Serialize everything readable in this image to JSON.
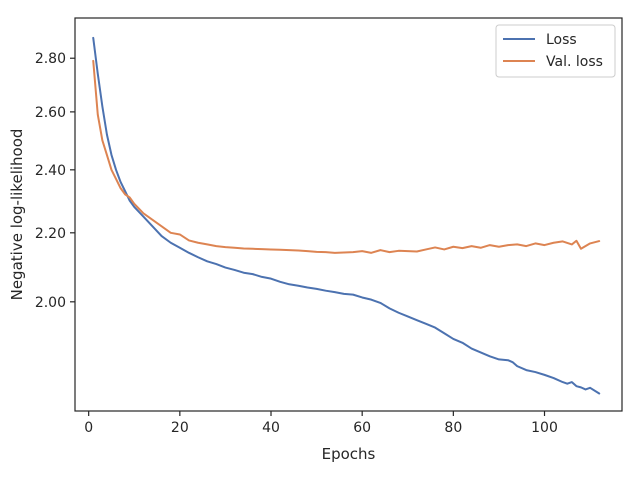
{
  "chart_data": {
    "type": "line",
    "xlabel": "Epochs",
    "ylabel": "Negative log-likelihood",
    "yscale": "log",
    "xlim": [
      -3,
      117
    ],
    "ylim": [
      1.72,
      2.96
    ],
    "xticks": [
      0,
      20,
      40,
      60,
      80,
      100
    ],
    "xtick_labels": [
      "0",
      "20",
      "40",
      "60",
      "80",
      "100"
    ],
    "yticks": [
      2.0,
      2.2,
      2.4,
      2.6,
      2.8
    ],
    "ytick_labels": [
      "2.00",
      "2.20",
      "2.40",
      "2.60",
      "2.80"
    ],
    "grid": false,
    "legend_position": "top-right",
    "series": [
      {
        "name": "Loss",
        "color": "#4c72b0",
        "x": [
          1,
          2,
          3,
          4,
          5,
          6,
          7,
          8,
          9,
          10,
          12,
          14,
          16,
          18,
          20,
          22,
          24,
          26,
          28,
          30,
          32,
          34,
          36,
          38,
          40,
          42,
          44,
          46,
          48,
          50,
          52,
          54,
          56,
          58,
          60,
          62,
          64,
          66,
          68,
          70,
          72,
          74,
          76,
          78,
          80,
          82,
          84,
          86,
          88,
          90,
          92,
          93,
          94,
          96,
          98,
          100,
          102,
          104,
          105,
          106,
          107,
          108,
          109,
          110,
          112
        ],
        "y": [
          2.88,
          2.74,
          2.62,
          2.52,
          2.45,
          2.4,
          2.36,
          2.33,
          2.3,
          2.28,
          2.25,
          2.22,
          2.19,
          2.17,
          2.155,
          2.14,
          2.127,
          2.115,
          2.107,
          2.097,
          2.09,
          2.082,
          2.078,
          2.07,
          2.065,
          2.056,
          2.049,
          2.045,
          2.04,
          2.036,
          2.031,
          2.027,
          2.022,
          2.02,
          2.012,
          2.006,
          1.997,
          1.982,
          1.97,
          1.96,
          1.95,
          1.94,
          1.93,
          1.915,
          1.9,
          1.89,
          1.875,
          1.865,
          1.855,
          1.847,
          1.845,
          1.84,
          1.83,
          1.82,
          1.815,
          1.808,
          1.8,
          1.79,
          1.786,
          1.79,
          1.78,
          1.777,
          1.772,
          1.776,
          1.762
        ]
      },
      {
        "name": "Val. loss",
        "color": "#dd8452",
        "x": [
          1,
          2,
          3,
          4,
          5,
          6,
          7,
          8,
          9,
          10,
          12,
          14,
          16,
          18,
          20,
          22,
          24,
          26,
          28,
          30,
          32,
          34,
          36,
          38,
          40,
          42,
          44,
          46,
          48,
          50,
          52,
          54,
          56,
          58,
          60,
          62,
          64,
          66,
          68,
          70,
          72,
          74,
          76,
          78,
          80,
          82,
          84,
          86,
          88,
          90,
          92,
          94,
          96,
          98,
          100,
          102,
          104,
          106,
          107,
          108,
          110,
          112
        ],
        "y": [
          2.79,
          2.59,
          2.5,
          2.45,
          2.4,
          2.37,
          2.34,
          2.32,
          2.31,
          2.29,
          2.26,
          2.24,
          2.22,
          2.2,
          2.195,
          2.177,
          2.17,
          2.165,
          2.16,
          2.157,
          2.155,
          2.153,
          2.152,
          2.151,
          2.15,
          2.149,
          2.148,
          2.147,
          2.145,
          2.143,
          2.142,
          2.14,
          2.141,
          2.142,
          2.145,
          2.14,
          2.148,
          2.142,
          2.146,
          2.145,
          2.144,
          2.15,
          2.156,
          2.15,
          2.158,
          2.154,
          2.16,
          2.155,
          2.163,
          2.158,
          2.163,
          2.165,
          2.16,
          2.168,
          2.163,
          2.17,
          2.174,
          2.165,
          2.176,
          2.152,
          2.168,
          2.175
        ]
      }
    ]
  }
}
